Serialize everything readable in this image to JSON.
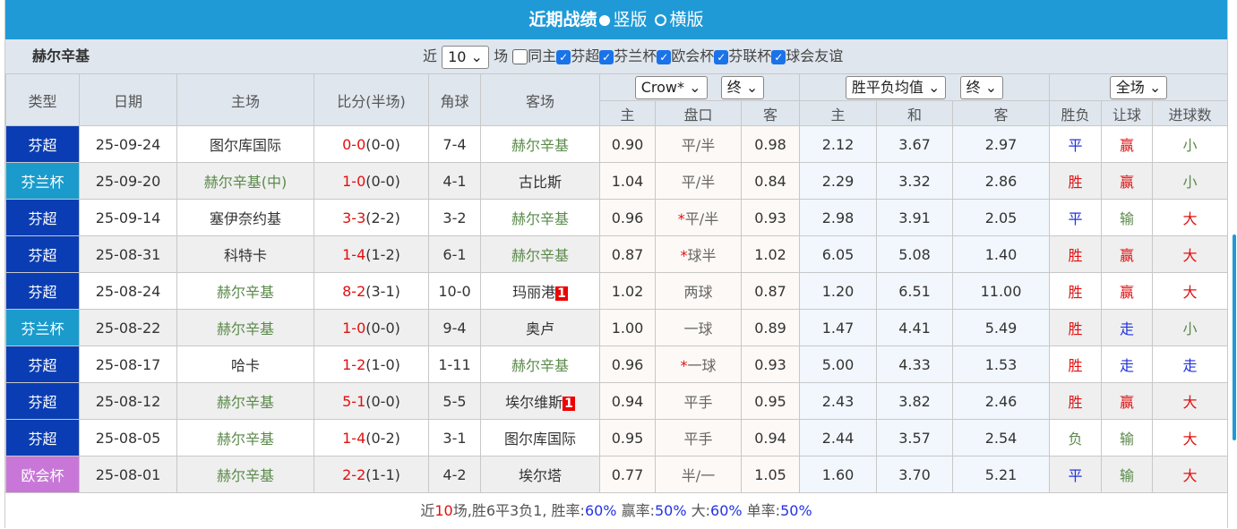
{
  "header": {
    "title": "近期战绩",
    "opt1": "竖版",
    "opt2": "横版"
  },
  "filter": {
    "team": "赫尔辛基",
    "near": "近",
    "count": "10",
    "unit": "场",
    "same_home": "同主",
    "leagues": [
      "芬超",
      "芬兰杯",
      "欧会杯",
      "芬联杯",
      "球会友谊"
    ]
  },
  "columns": {
    "type": "类型",
    "date": "日期",
    "home": "主场",
    "score": "比分(半场)",
    "corner": "角球",
    "away": "客场",
    "company": "Crow*",
    "company_stage": "终",
    "avg": "胜平负均值",
    "avg_stage": "终",
    "scope": "全场",
    "sub": [
      "主",
      "盘口",
      "客",
      "主",
      "和",
      "客",
      "胜负",
      "让球",
      "进球数"
    ]
  },
  "colors": {
    "芬超": "#0a3db3",
    "芬兰杯": "#1a9bcc",
    "欧会杯": "#c877d8"
  },
  "rows": [
    {
      "type": "芬超",
      "date": "25-09-24",
      "home": "图尔库国际",
      "home_hl": false,
      "score": "0-0",
      "half": "(0-0)",
      "corner": "7-4",
      "away": "赫尔辛基",
      "away_hl": true,
      "red": "",
      "h": "0.90",
      "line": "平/半",
      "star": "",
      "a": "0.98",
      "w": "2.12",
      "d": "3.67",
      "l": "2.97",
      "res": "平",
      "hcp": "赢",
      "ou": "小"
    },
    {
      "type": "芬兰杯",
      "date": "25-09-20",
      "home": "赫尔辛基",
      "home_hl": true,
      "neutral": "(中)",
      "score": "1-0",
      "half": "(0-0)",
      "corner": "4-1",
      "away": "古比斯",
      "away_hl": false,
      "red": "",
      "h": "1.04",
      "line": "平/半",
      "star": "",
      "a": "0.84",
      "w": "2.29",
      "d": "3.32",
      "l": "2.86",
      "res": "胜",
      "hcp": "赢",
      "ou": "小"
    },
    {
      "type": "芬超",
      "date": "25-09-14",
      "home": "塞伊奈约基",
      "home_hl": false,
      "score": "3-3",
      "half": "(2-2)",
      "corner": "3-2",
      "away": "赫尔辛基",
      "away_hl": true,
      "red": "",
      "h": "0.96",
      "line": "平/半",
      "star": "*",
      "a": "0.93",
      "w": "2.98",
      "d": "3.91",
      "l": "2.05",
      "res": "平",
      "hcp": "输",
      "ou": "大"
    },
    {
      "type": "芬超",
      "date": "25-08-31",
      "home": "科特卡",
      "home_hl": false,
      "score": "1-4",
      "half": "(1-2)",
      "corner": "6-1",
      "away": "赫尔辛基",
      "away_hl": true,
      "red": "",
      "h": "0.87",
      "line": "球半",
      "star": "*",
      "a": "1.02",
      "w": "6.05",
      "d": "5.08",
      "l": "1.40",
      "res": "胜",
      "hcp": "赢",
      "ou": "大"
    },
    {
      "type": "芬超",
      "date": "25-08-24",
      "home": "赫尔辛基",
      "home_hl": true,
      "score": "8-2",
      "half": "(3-1)",
      "corner": "10-0",
      "away": "玛丽港",
      "away_hl": false,
      "red": "1",
      "h": "1.02",
      "line": "两球",
      "star": "",
      "a": "0.87",
      "w": "1.20",
      "d": "6.51",
      "l": "11.00",
      "res": "胜",
      "hcp": "赢",
      "ou": "大"
    },
    {
      "type": "芬兰杯",
      "date": "25-08-22",
      "home": "赫尔辛基",
      "home_hl": true,
      "score": "1-0",
      "half": "(0-0)",
      "corner": "9-4",
      "away": "奥卢",
      "away_hl": false,
      "red": "",
      "h": "1.00",
      "line": "一球",
      "star": "",
      "a": "0.89",
      "w": "1.47",
      "d": "4.41",
      "l": "5.49",
      "res": "胜",
      "hcp": "走",
      "ou": "小"
    },
    {
      "type": "芬超",
      "date": "25-08-17",
      "home": "哈卡",
      "home_hl": false,
      "score": "1-2",
      "half": "(1-0)",
      "corner": "1-11",
      "away": "赫尔辛基",
      "away_hl": true,
      "red": "",
      "h": "0.96",
      "line": "一球",
      "star": "*",
      "a": "0.93",
      "w": "5.00",
      "d": "4.33",
      "l": "1.53",
      "res": "胜",
      "hcp": "走",
      "ou": "走"
    },
    {
      "type": "芬超",
      "date": "25-08-12",
      "home": "赫尔辛基",
      "home_hl": true,
      "score": "5-1",
      "half": "(0-0)",
      "corner": "5-5",
      "away": "埃尔维斯",
      "away_hl": false,
      "red": "1",
      "h": "0.94",
      "line": "平手",
      "star": "",
      "a": "0.95",
      "w": "2.43",
      "d": "3.82",
      "l": "2.46",
      "res": "胜",
      "hcp": "赢",
      "ou": "大"
    },
    {
      "type": "芬超",
      "date": "25-08-05",
      "home": "赫尔辛基",
      "home_hl": true,
      "score": "1-4",
      "half": "(0-2)",
      "corner": "3-1",
      "away": "图尔库国际",
      "away_hl": false,
      "red": "",
      "h": "0.95",
      "line": "平手",
      "star": "",
      "a": "0.94",
      "w": "2.44",
      "d": "3.57",
      "l": "2.54",
      "res": "负",
      "hcp": "输",
      "ou": "大"
    },
    {
      "type": "欧会杯",
      "date": "25-08-01",
      "home": "赫尔辛基",
      "home_hl": true,
      "score": "2-2",
      "half": "(1-1)",
      "corner": "4-2",
      "away": "埃尔塔",
      "away_hl": false,
      "red": "",
      "h": "0.77",
      "line": "半/一",
      "star": "",
      "a": "1.05",
      "w": "1.60",
      "d": "3.70",
      "l": "5.21",
      "res": "平",
      "hcp": "输",
      "ou": "大"
    }
  ],
  "summary": {
    "p1": "近",
    "n": "10",
    "p2": "场,胜6平3负1, 胜率:",
    "win": "60%",
    "p3": " 赢率:",
    "hcp": "50%",
    "p4": " 大:",
    "big": "60%",
    "p5": " 单率:",
    "odd": "50%"
  }
}
